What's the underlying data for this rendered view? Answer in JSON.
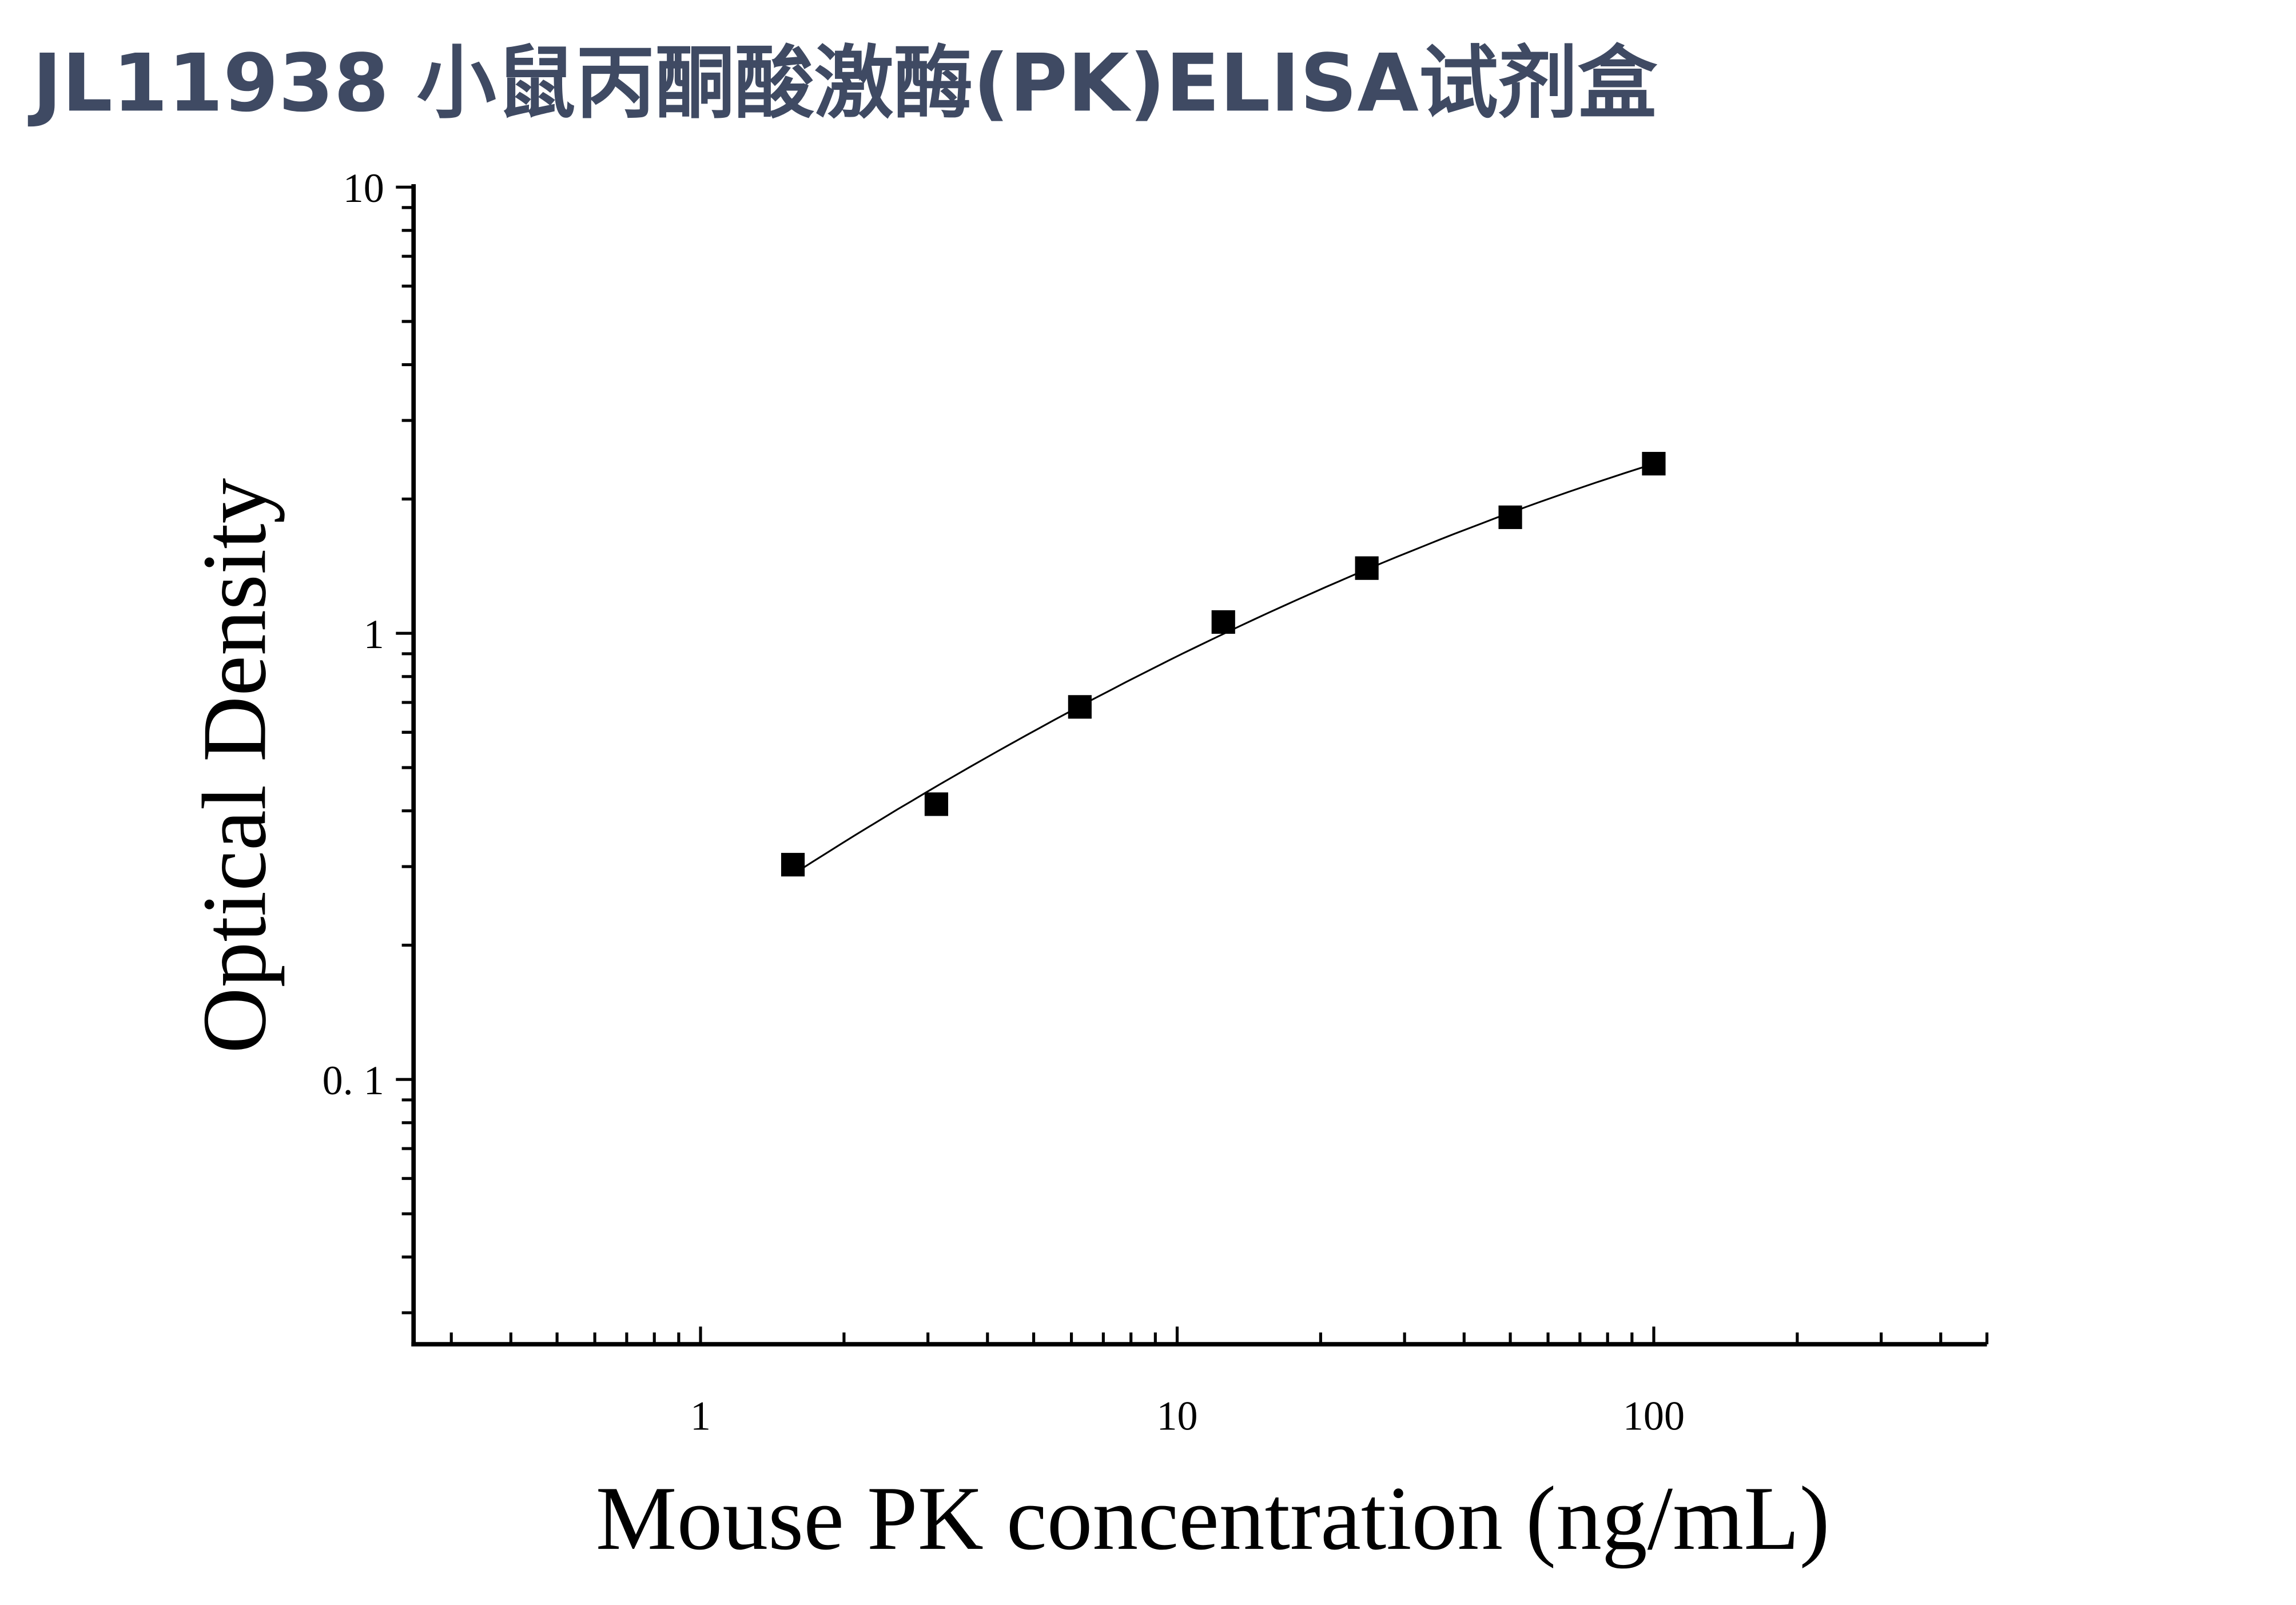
{
  "chart_data": {
    "type": "scatter",
    "title": "JL11938 小鼠丙酮酸激酶(PK)ELISA试剂盒",
    "xlabel": "Mouse PK concentration (ng/mL)",
    "ylabel": "Optical Density",
    "xscale": "log",
    "yscale": "log",
    "xlim": [
      0.25,
      500
    ],
    "ylim": [
      0.0255,
      10
    ],
    "xticks": [
      {
        "v": 1,
        "label": "1"
      },
      {
        "v": 10,
        "label": "10"
      },
      {
        "v": 100,
        "label": "100"
      }
    ],
    "yticks": [
      {
        "v": 0.1,
        "label": "0. 1"
      },
      {
        "v": 1,
        "label": "1"
      },
      {
        "v": 10,
        "label": "10"
      }
    ],
    "grid": false,
    "series": [
      {
        "name": "Standard",
        "marker": "square",
        "color": "#000000",
        "x": [
          1.5625,
          3.125,
          6.25,
          12.5,
          25,
          50,
          100
        ],
        "y": [
          0.303,
          0.414,
          0.684,
          1.06,
          1.4,
          1.82,
          2.4
        ]
      },
      {
        "name": "Fit curve",
        "type": "line",
        "color": "#000000"
      }
    ]
  }
}
